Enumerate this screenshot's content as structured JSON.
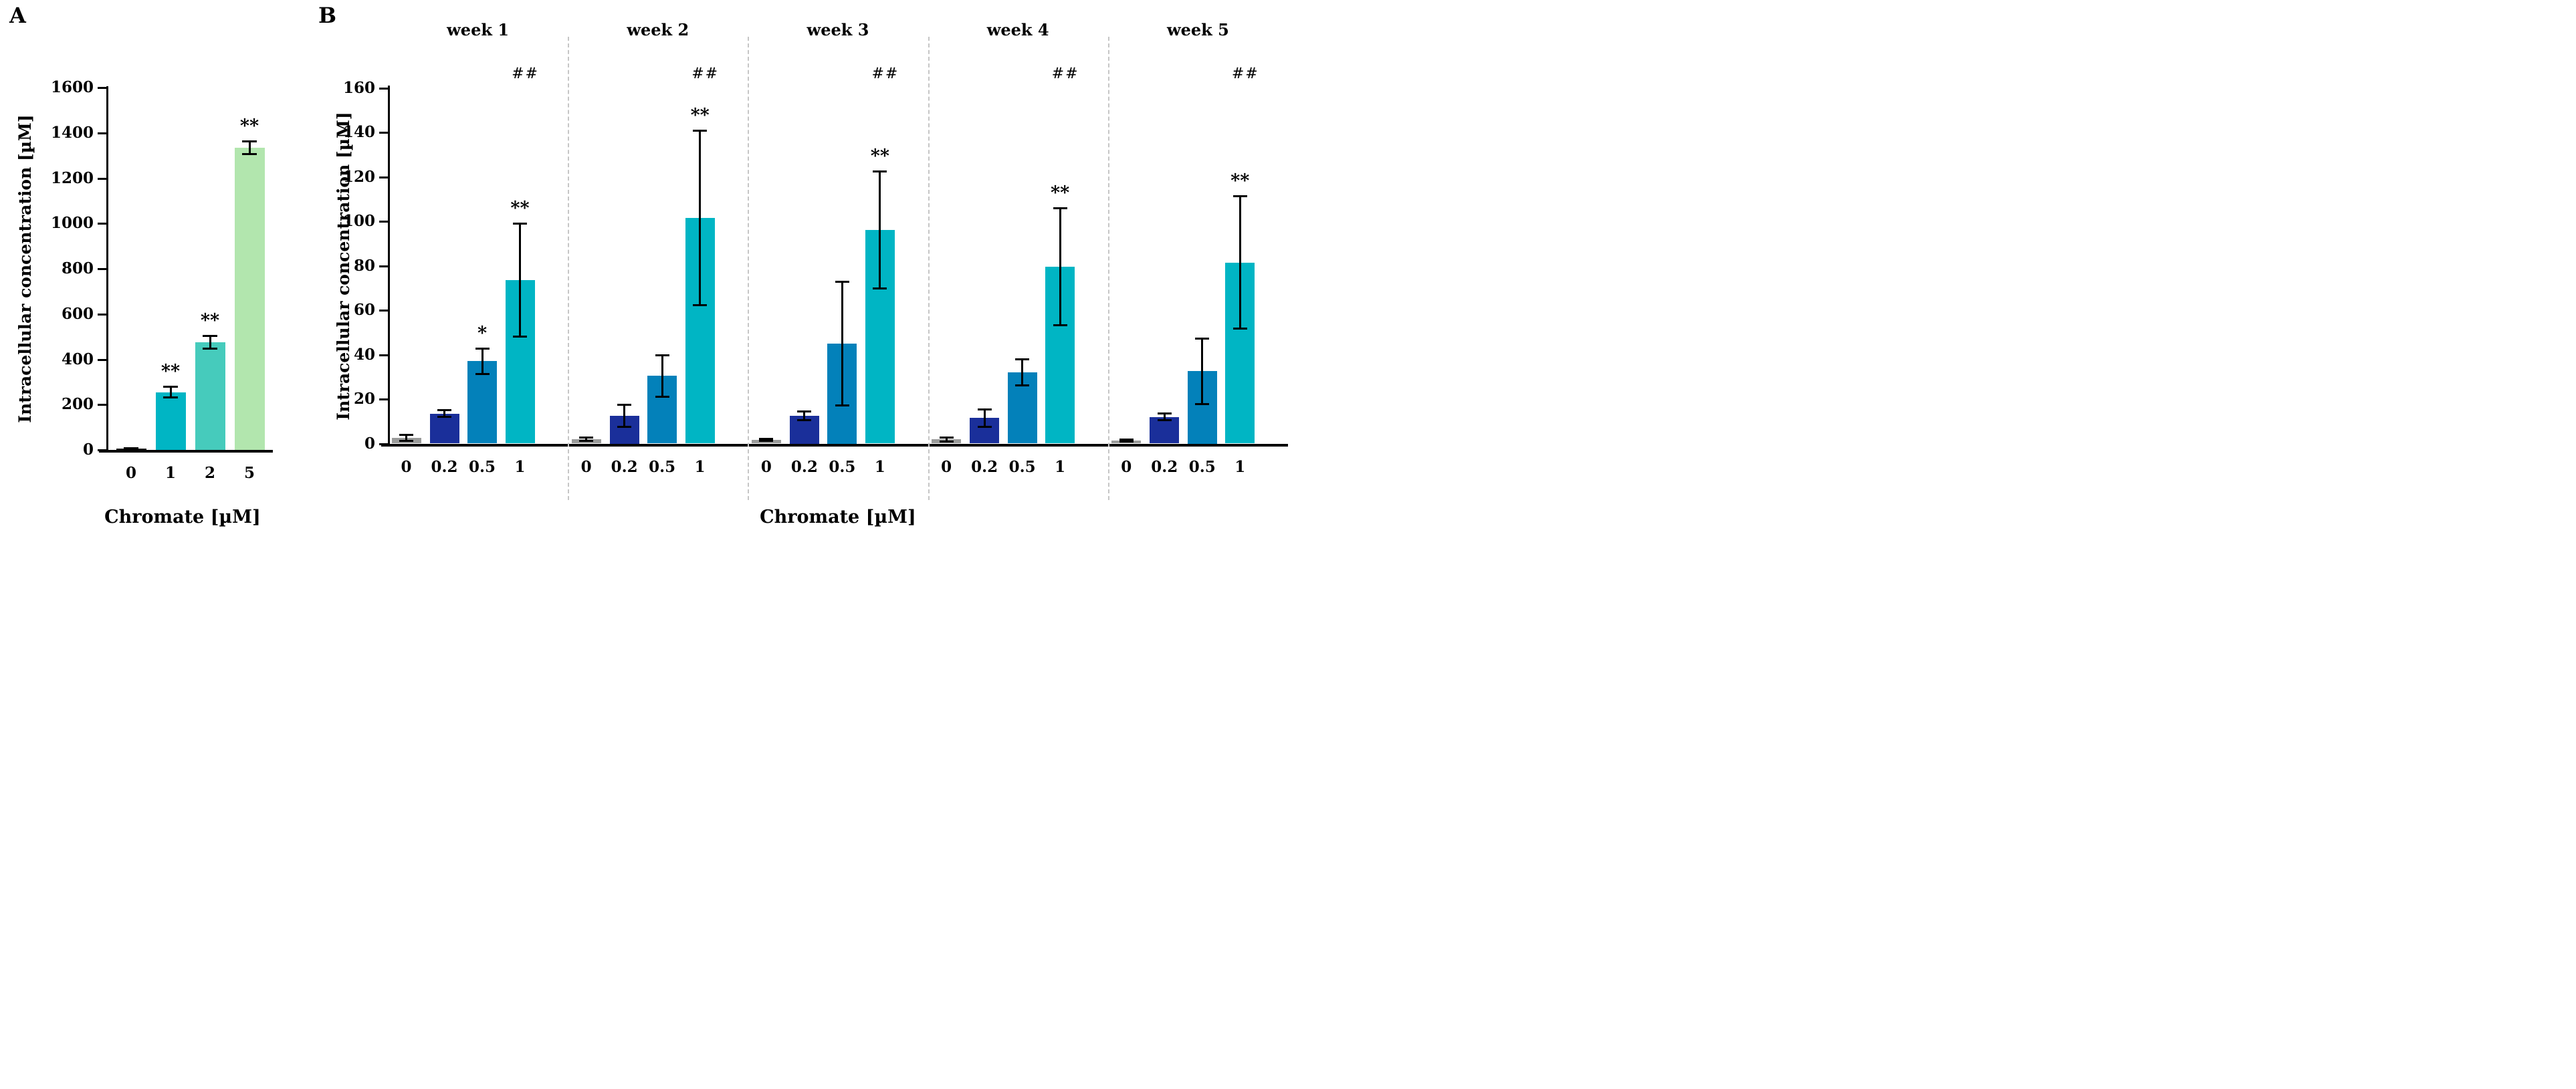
{
  "colors": {
    "axis": "#000000",
    "separator": "#c6c6c6",
    "background": "#ffffff",
    "panel_a_bars": [
      "#1a1a1a",
      "#00b5c4",
      "#46cbbc",
      "#b2e6ae"
    ],
    "panel_b_series": [
      "#9a9b9a",
      "#1a2f9a",
      "#0381ba",
      "#00b5c4"
    ]
  },
  "chart_data": [
    {
      "type": "bar",
      "panel_label": "A",
      "ylabel": "Intracellular concentration [µM]",
      "xlabel": "Chromate [µM]",
      "ylim": [
        0,
        1600
      ],
      "yticks": [
        0,
        200,
        400,
        600,
        800,
        1000,
        1200,
        1400,
        1600
      ],
      "categories": [
        "0",
        "1",
        "2",
        "5"
      ],
      "values": [
        5,
        255,
        475,
        1335
      ],
      "errors": [
        3,
        25,
        30,
        30
      ],
      "significance": [
        "",
        "**",
        "**",
        "**"
      ],
      "bar_colors": [
        "#1a1a1a",
        "#00b5c4",
        "#46cbbc",
        "#b2e6ae"
      ],
      "grid": false,
      "legend": "none"
    },
    {
      "type": "grouped-bar",
      "panel_label": "B",
      "ylabel": "Intracellular concentration [µM]",
      "xlabel": "Chromate [µM]",
      "ylim": [
        0,
        160
      ],
      "yticks": [
        0,
        20,
        40,
        60,
        80,
        100,
        120,
        140,
        160
      ],
      "categories": [
        "0",
        "0.2",
        "0.5",
        "1"
      ],
      "series_colors": [
        "#9a9b9a",
        "#1a2f9a",
        "#0381ba",
        "#00b5c4"
      ],
      "groups": [
        {
          "label": "week 1",
          "values": [
            2.6,
            13.5,
            37,
            73.5
          ],
          "errors": [
            1.4,
            1.7,
            6,
            25.5
          ],
          "significance": [
            "",
            "",
            "*",
            "**"
          ],
          "annotation": "##"
        },
        {
          "label": "week 2",
          "values": [
            2.1,
            12.5,
            30.5,
            101.5
          ],
          "errors": [
            0.9,
            5,
            9.5,
            39.5
          ],
          "significance": [
            "",
            "",
            "",
            "**"
          ],
          "annotation": "##"
        },
        {
          "label": "week 3",
          "values": [
            1.6,
            12.5,
            45,
            96
          ],
          "errors": [
            0.6,
            2,
            28,
            26.5
          ],
          "significance": [
            "",
            "",
            "",
            "**"
          ],
          "annotation": "##"
        },
        {
          "label": "week 4",
          "values": [
            1.9,
            11.5,
            32,
            79.5
          ],
          "errors": [
            1.1,
            4,
            6,
            26.5
          ],
          "significance": [
            "",
            "",
            "",
            "**"
          ],
          "annotation": "##"
        },
        {
          "label": "week 5",
          "values": [
            1.3,
            12,
            32.5,
            81.5
          ],
          "errors": [
            0.6,
            1.6,
            15,
            30
          ],
          "significance": [
            "",
            "",
            "",
            "**"
          ],
          "annotation": "##"
        }
      ],
      "grid": false,
      "legend": "none"
    }
  ]
}
